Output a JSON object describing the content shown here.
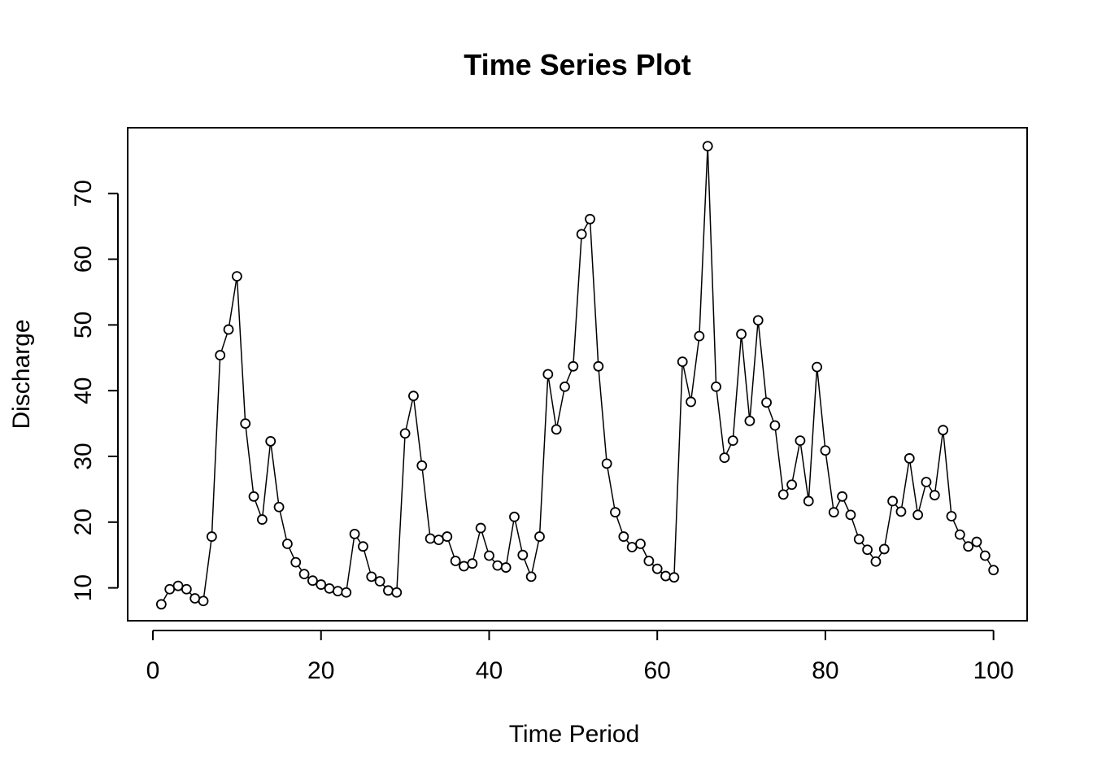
{
  "chart_data": {
    "type": "line",
    "title": "Time Series Plot",
    "xlabel": "Time Period",
    "ylabel": "Discharge",
    "xlim": [
      -3,
      104
    ],
    "ylim": [
      5,
      80
    ],
    "x_ticks": [
      0,
      20,
      40,
      60,
      80,
      100
    ],
    "y_ticks": [
      10,
      20,
      30,
      40,
      50,
      60,
      70
    ],
    "x_tick_labels": [
      "0",
      "20",
      "40",
      "60",
      "80",
      "100"
    ],
    "y_tick_labels": [
      "10",
      "20",
      "30",
      "40",
      "50",
      "60",
      "70"
    ],
    "grid": false,
    "legend": "none",
    "marker": "open-circle",
    "line_color": "#000000",
    "x": [
      1,
      2,
      3,
      4,
      5,
      6,
      7,
      8,
      9,
      10,
      11,
      12,
      13,
      14,
      15,
      16,
      17,
      18,
      19,
      20,
      21,
      22,
      23,
      24,
      25,
      26,
      27,
      28,
      29,
      30,
      31,
      32,
      33,
      34,
      35,
      36,
      37,
      38,
      39,
      40,
      41,
      42,
      43,
      44,
      45,
      46,
      47,
      48,
      49,
      50,
      51,
      52,
      53,
      54,
      55,
      56,
      57,
      58,
      59,
      60,
      61,
      62,
      63,
      64,
      65,
      66,
      67,
      68,
      69,
      70,
      71,
      72,
      73,
      74,
      75,
      76,
      77,
      78,
      79,
      80,
      81,
      82,
      83,
      84,
      85,
      86,
      87,
      88,
      89,
      90,
      91,
      92,
      93,
      94,
      95,
      96,
      97,
      98,
      99,
      100
    ],
    "values": [
      7.5,
      9.8,
      10.3,
      9.8,
      8.4,
      8.0,
      17.8,
      45.4,
      49.3,
      57.4,
      35.0,
      23.9,
      20.4,
      32.3,
      22.3,
      16.7,
      13.9,
      12.1,
      11.1,
      10.5,
      9.9,
      9.5,
      9.3,
      18.2,
      16.3,
      11.7,
      11.0,
      9.6,
      9.3,
      33.5,
      39.2,
      28.6,
      17.5,
      17.3,
      17.8,
      14.1,
      13.3,
      13.7,
      19.1,
      14.9,
      13.4,
      13.1,
      20.8,
      15.0,
      11.7,
      17.8,
      42.5,
      34.1,
      40.6,
      43.7,
      63.8,
      66.1,
      43.7,
      28.9,
      21.5,
      17.8,
      16.2,
      16.7,
      14.1,
      12.9,
      11.8,
      11.6,
      44.4,
      38.3,
      48.3,
      77.2,
      40.6,
      29.8,
      32.4,
      48.6,
      35.4,
      50.7,
      38.2,
      34.7,
      24.2,
      25.7,
      32.4,
      23.2,
      43.6,
      30.9,
      21.5,
      23.9,
      21.1,
      17.4,
      15.8,
      14.0,
      15.9,
      23.2,
      21.6,
      29.7,
      21.1,
      26.1,
      24.1,
      34.0,
      20.9,
      18.1,
      16.3,
      17.0,
      14.9,
      12.7
    ]
  }
}
